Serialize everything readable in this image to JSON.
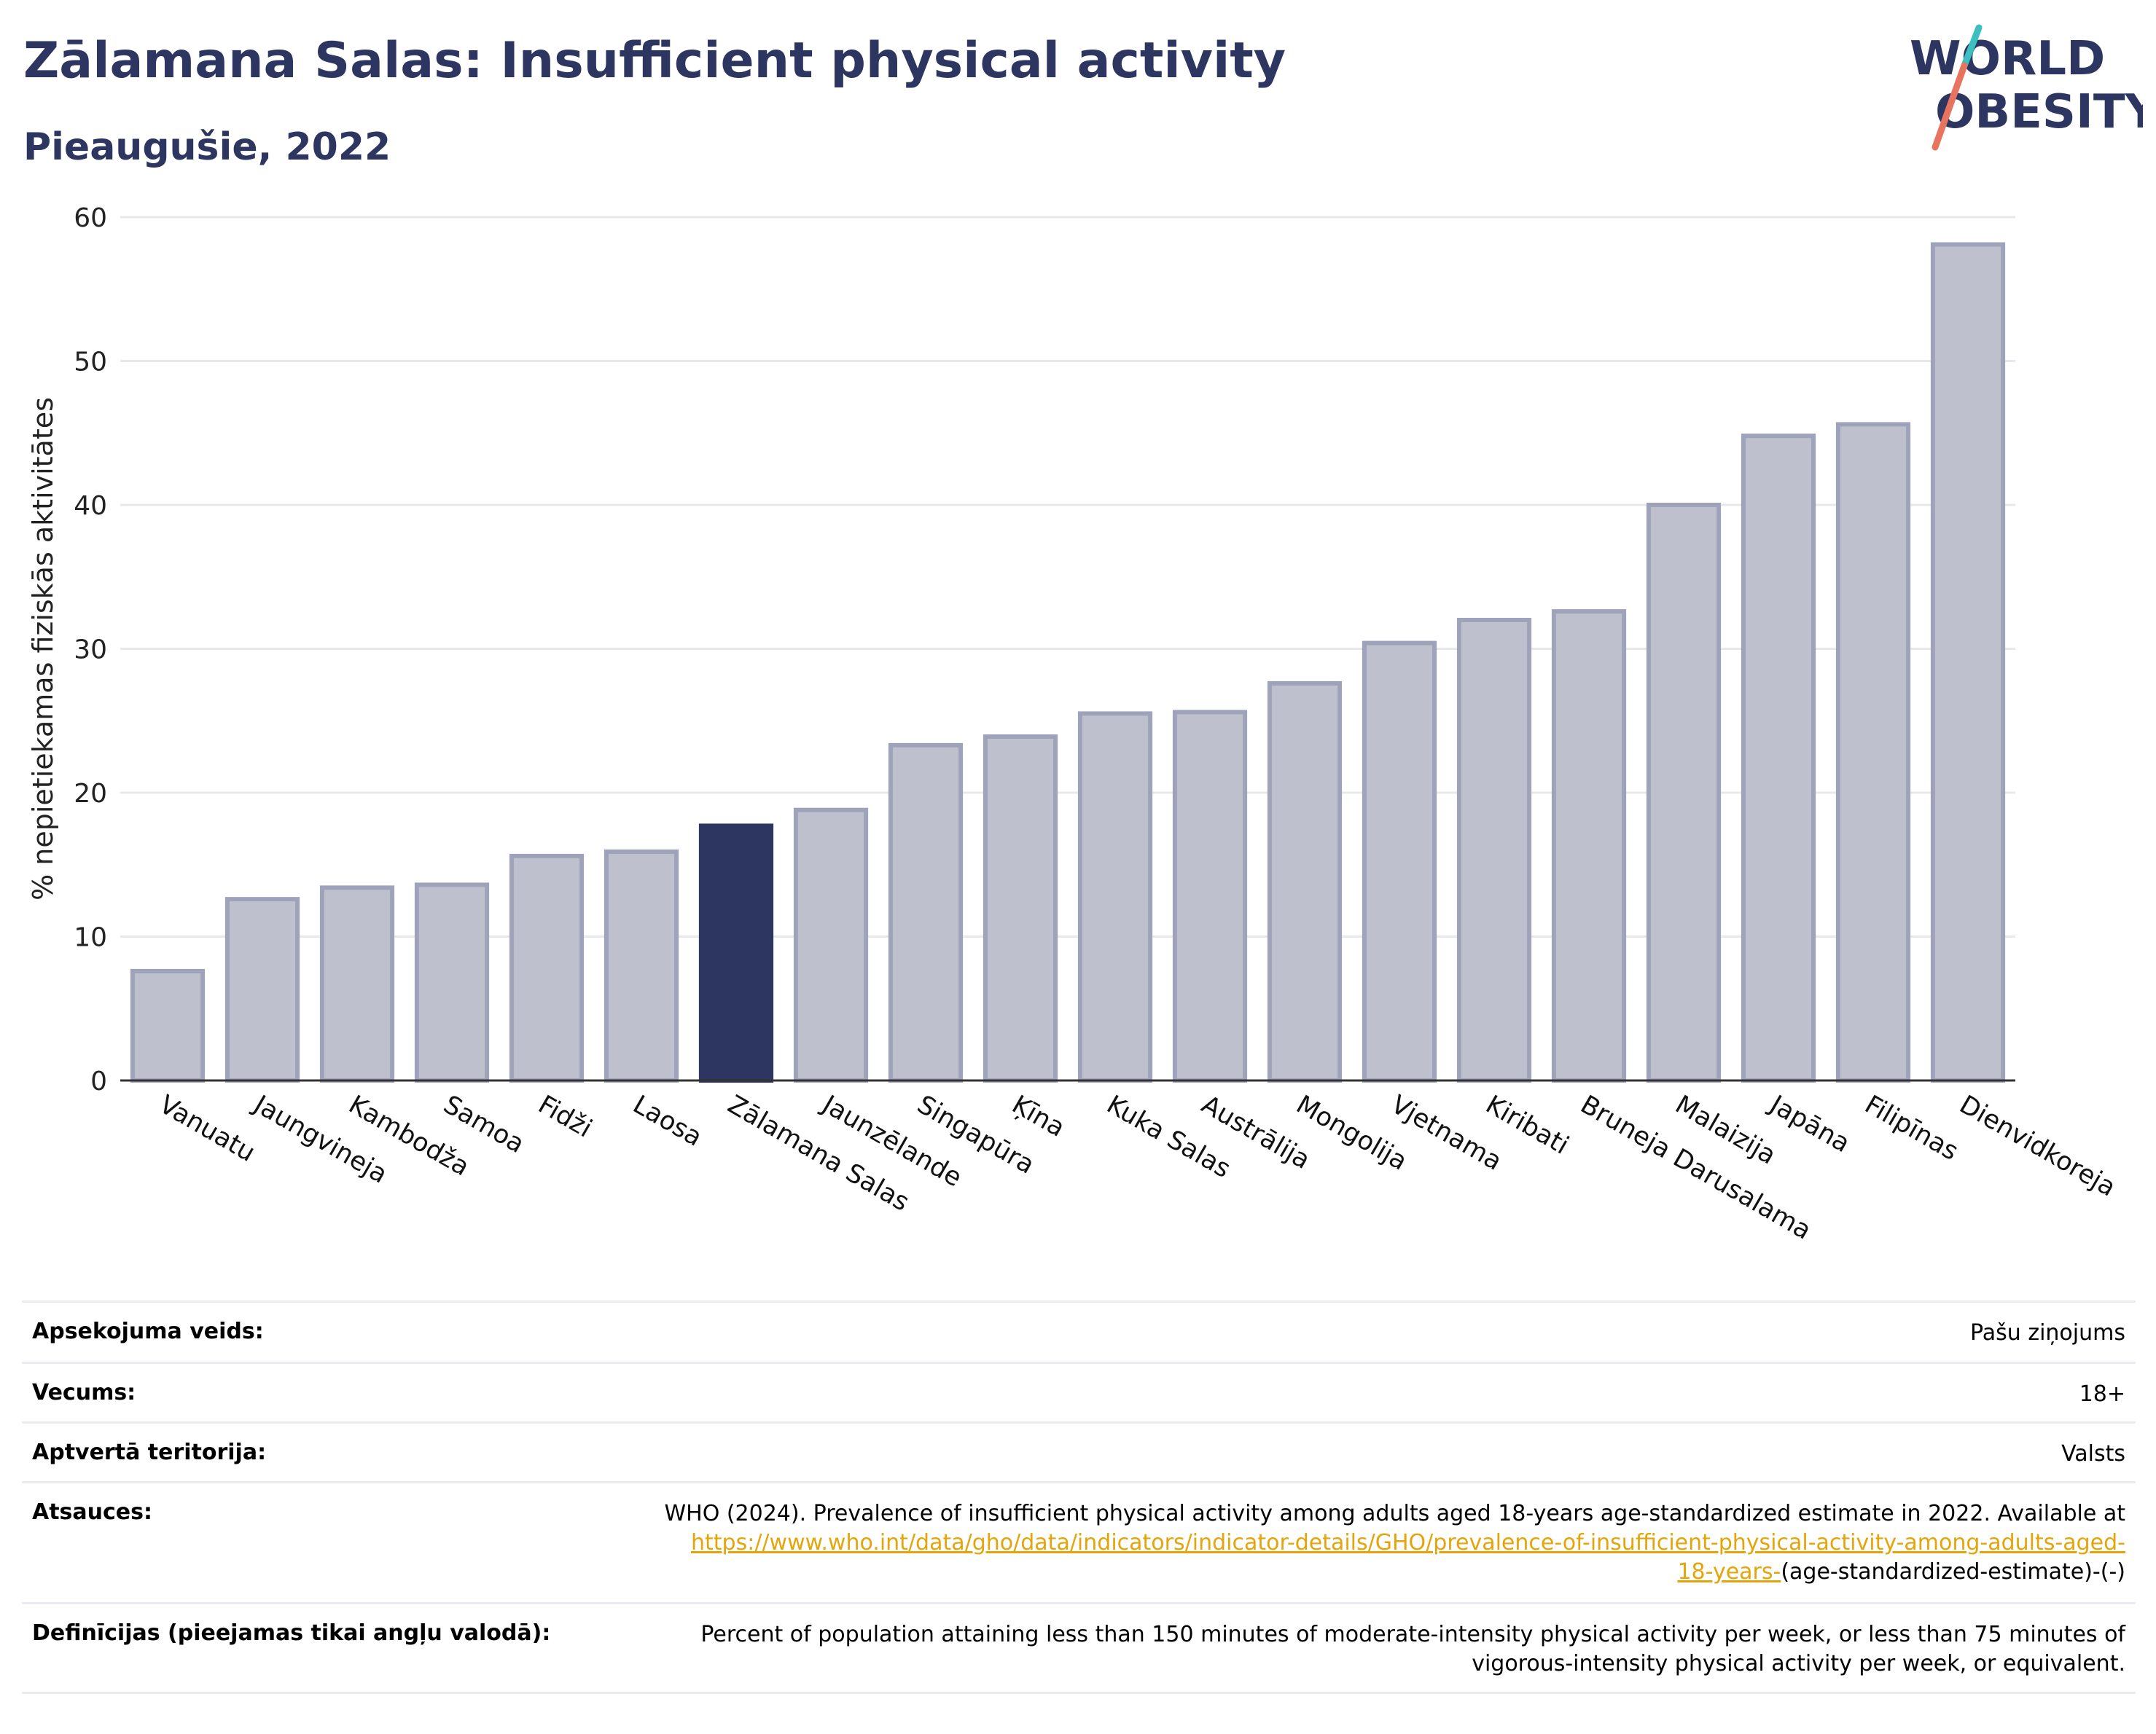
{
  "header": {
    "title": "Zālamana Salas: Insufficient physical activity",
    "subtitle": "Pieaugušie, 2022",
    "logo_line1": "WORLD",
    "logo_line2": "OBESITY"
  },
  "colors": {
    "primary": "#2d3660",
    "bar_fill": "#bec1cd",
    "bar_stroke": "#9ea3ba",
    "highlight": "#2d3660",
    "link": "#e5a50a",
    "logo_teal": "#3bbfbf",
    "logo_coral": "#e8735f"
  },
  "chart_data": {
    "type": "bar",
    "ylabel": "% nepietiekamas fiziskās aktivitātes",
    "xlabel": "",
    "ylim": [
      0,
      60
    ],
    "yticks": [
      0,
      10,
      20,
      30,
      40,
      50,
      60
    ],
    "grid": true,
    "highlight": "Zālamana Salas",
    "categories": [
      "Vanuatu",
      "Jaungvineja",
      "Kambodža",
      "Samoa",
      "Fidži",
      "Laosa",
      "Zālamana Salas",
      "Jaunzēlande",
      "Singapūra",
      "Ķīna",
      "Kuka Salas",
      "Austrālija",
      "Mongolija",
      "Vjetnama",
      "Kiribati",
      "Bruneja Darusalama",
      "Malaizija",
      "Japāna",
      "Filipīnas",
      "Dienvidkoreja"
    ],
    "values": [
      7.6,
      12.6,
      13.4,
      13.6,
      15.6,
      15.9,
      17.7,
      18.8,
      23.3,
      23.9,
      25.5,
      25.6,
      27.6,
      30.4,
      32.0,
      32.6,
      40.0,
      44.8,
      45.6,
      58.1
    ]
  },
  "info": {
    "rows": [
      {
        "label": "Apsekojuma veids:",
        "value": "Pašu ziņojums"
      },
      {
        "label": "Vecums:",
        "value": "18+"
      },
      {
        "label": "Aptvertā teritorija:",
        "value": "Valsts"
      }
    ],
    "references": {
      "label": "Atsauces:",
      "text": "WHO (2024). Prevalence of insufficient physical activity among adults aged 18-years age-standardized estimate in 2022. Available at",
      "link_line1": "https://www.who.int/data/gho/data/indicators/indicator-details/GHO/prevalence-of-insufficient-physical-activity-among-adults-aged-",
      "link_line2": "18-years-",
      "suffix": "(age-standardized-estimate)-(-)"
    },
    "definitions": {
      "label": "Definīcijas (pieejamas tikai angļu valodā):",
      "line1": "Percent of population attaining less than 150 minutes of moderate-intensity physical activity per week, or less than 75 minutes of",
      "line2": "vigorous-intensity physical activity per week, or equivalent."
    }
  }
}
